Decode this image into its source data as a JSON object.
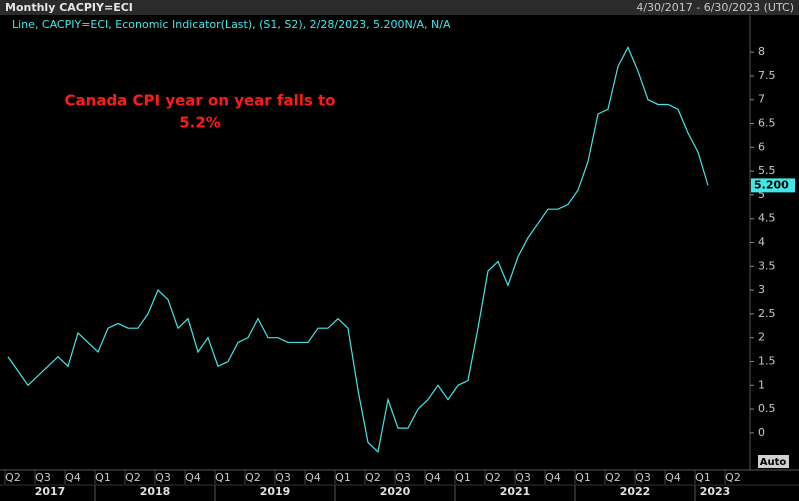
{
  "chart_data": {
    "type": "line",
    "title": "Monthly CACPIY=ECI",
    "date_range": "4/30/2017 - 6/30/2023 (UTC)",
    "legend_text": "Line, CACPIY=ECI, Economic Indicator(Last), (S1, S2), 2/28/2023, 5.200N/A, N/A",
    "annotation": [
      "Canada CPI year on year falls to",
      "5.2%"
    ],
    "annotation_color": "#ff1a1a",
    "scale_mode": "Auto",
    "categories": [
      "Q2",
      null,
      null,
      "Q3",
      null,
      null,
      "Q4",
      null,
      null,
      "Q1",
      null,
      null,
      "Q2",
      null,
      null,
      "Q3",
      null,
      null,
      "Q4",
      null,
      null,
      "Q1",
      null,
      null,
      "Q2",
      null,
      null,
      "Q3",
      null,
      null,
      "Q4",
      null,
      null,
      "Q1",
      null,
      null,
      "Q2",
      null,
      null,
      "Q3",
      null,
      null,
      "Q4",
      null,
      null,
      "Q1",
      null,
      null,
      "Q2",
      null,
      null,
      "Q3",
      null,
      null,
      "Q4",
      null,
      null,
      "Q1",
      null,
      null,
      "Q2",
      null,
      null,
      "Q3",
      null,
      null,
      "Q4",
      null,
      null,
      "Q1",
      null,
      null,
      "Q2"
    ],
    "years": [
      "2017",
      "2018",
      "2019",
      "2020",
      "2021",
      "2022",
      "2023"
    ],
    "series": [
      {
        "name": "CACPIY=ECI",
        "color": "#40e8e8",
        "values": [
          1.6,
          1.3,
          1.0,
          1.2,
          1.4,
          1.6,
          1.4,
          2.1,
          1.9,
          1.7,
          2.2,
          2.3,
          2.2,
          2.2,
          2.5,
          3.0,
          2.8,
          2.2,
          2.4,
          1.7,
          2.0,
          1.4,
          1.5,
          1.9,
          2.0,
          2.4,
          2.0,
          2.0,
          1.9,
          1.9,
          1.9,
          2.2,
          2.2,
          2.4,
          2.2,
          0.9,
          -0.2,
          -0.4,
          0.7,
          0.1,
          0.1,
          0.5,
          0.7,
          1.0,
          0.7,
          1.0,
          1.1,
          2.2,
          3.4,
          3.6,
          3.1,
          3.7,
          4.1,
          4.4,
          4.7,
          4.7,
          4.8,
          5.1,
          5.7,
          6.7,
          6.8,
          7.7,
          8.1,
          7.6,
          7.0,
          6.9,
          6.9,
          6.8,
          6.3,
          5.9,
          5.2,
          null,
          null
        ],
        "value_labels": [
          null,
          null,
          null,
          null,
          null,
          null,
          null,
          null,
          null,
          null,
          null,
          null,
          null,
          null,
          null,
          null,
          null,
          null,
          null,
          null,
          null,
          null,
          null,
          null,
          null,
          null,
          null,
          null,
          null,
          null,
          null,
          null,
          null,
          null,
          null,
          null,
          null,
          null,
          null,
          null,
          null,
          null,
          null,
          null,
          null,
          null,
          null,
          null,
          null,
          null,
          null,
          null,
          null,
          null,
          null,
          null,
          null,
          null,
          null,
          null,
          null,
          null,
          null,
          null,
          null,
          null,
          null,
          null,
          null,
          null,
          "5.200",
          null,
          null
        ]
      }
    ],
    "ylim": [
      -0.78,
      8.78
    ],
    "yticks": [
      0,
      0.5,
      1,
      1.5,
      2,
      2.5,
      3,
      3.5,
      4,
      4.5,
      5,
      5.5,
      6,
      6.5,
      7,
      7.5,
      8
    ],
    "grid": false
  }
}
